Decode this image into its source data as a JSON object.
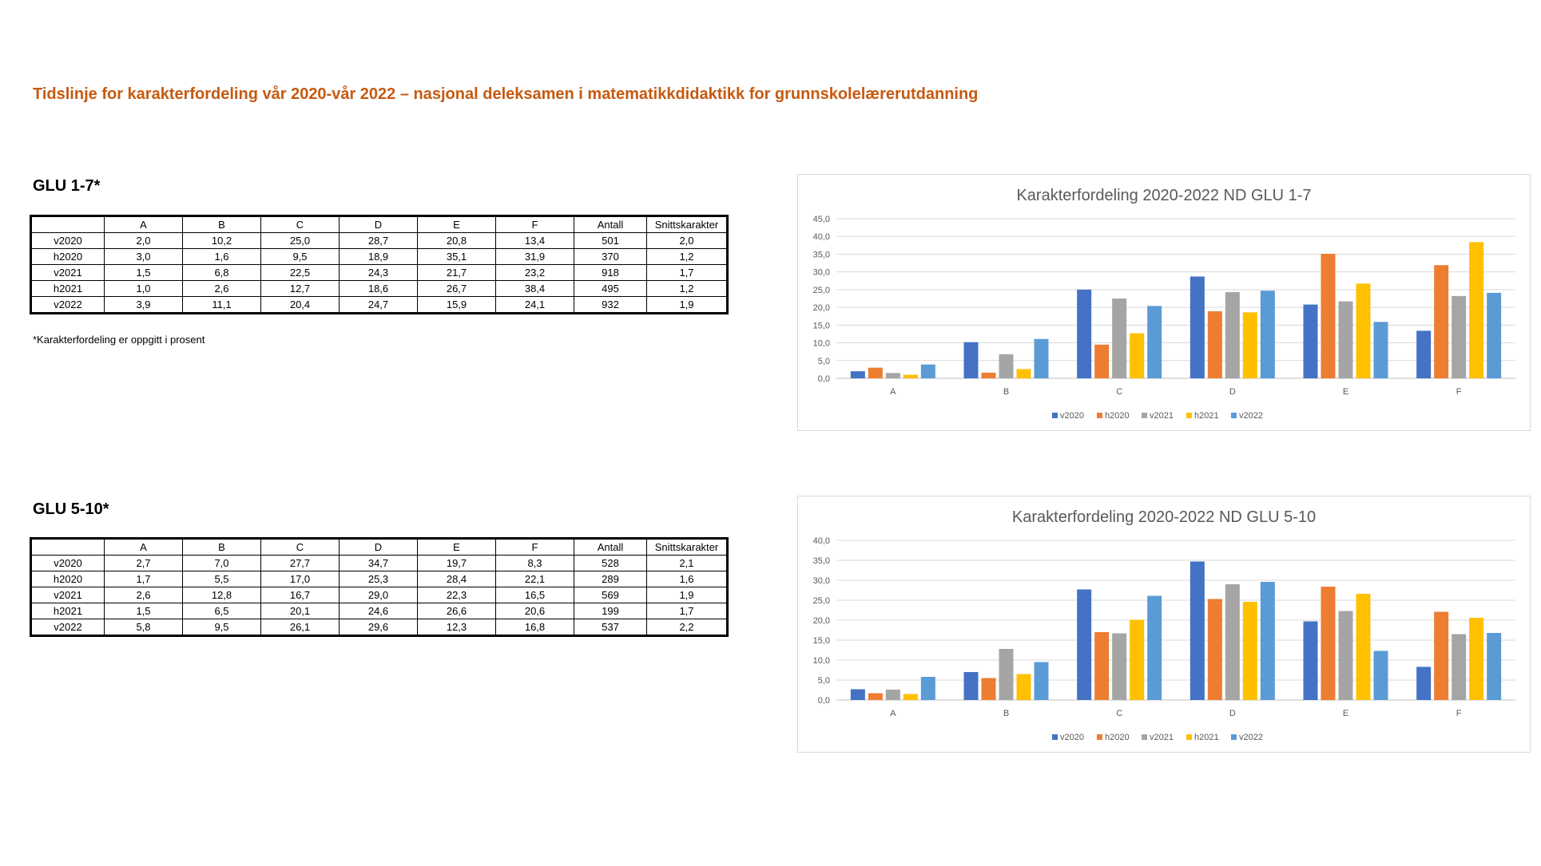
{
  "page": {
    "title": "Tidslinje for karakterfordeling vår 2020-vår 2022 – nasjonal deleksamen i matematikkdidaktikk for grunnskolelærerutdanning",
    "footnote": "*Karakterfordeling er oppgitt i prosent"
  },
  "sections": [
    {
      "heading": "GLU 1-7*",
      "table": {
        "headers": [
          "",
          "A",
          "B",
          "C",
          "D",
          "E",
          "F",
          "Antall",
          "Snittskarakter"
        ],
        "rows": [
          [
            "v2020",
            "2,0",
            "10,2",
            "25,0",
            "28,7",
            "20,8",
            "13,4",
            "501",
            "2,0"
          ],
          [
            "h2020",
            "3,0",
            "1,6",
            "9,5",
            "18,9",
            "35,1",
            "31,9",
            "370",
            "1,2"
          ],
          [
            "v2021",
            "1,5",
            "6,8",
            "22,5",
            "24,3",
            "21,7",
            "23,2",
            "918",
            "1,7"
          ],
          [
            "h2021",
            "1,0",
            "2,6",
            "12,7",
            "18,6",
            "26,7",
            "38,4",
            "495",
            "1,2"
          ],
          [
            "v2022",
            "3,9",
            "11,1",
            "20,4",
            "24,7",
            "15,9",
            "24,1",
            "932",
            "1,9"
          ]
        ]
      }
    },
    {
      "heading": "GLU 5-10*",
      "table": {
        "headers": [
          "",
          "A",
          "B",
          "C",
          "D",
          "E",
          "F",
          "Antall",
          "Snittskarakter"
        ],
        "rows": [
          [
            "v2020",
            "2,7",
            "7,0",
            "27,7",
            "34,7",
            "19,7",
            "8,3",
            "528",
            "2,1"
          ],
          [
            "h2020",
            "1,7",
            "5,5",
            "17,0",
            "25,3",
            "28,4",
            "22,1",
            "289",
            "1,6"
          ],
          [
            "v2021",
            "2,6",
            "12,8",
            "16,7",
            "29,0",
            "22,3",
            "16,5",
            "569",
            "1,9"
          ],
          [
            "h2021",
            "1,5",
            "6,5",
            "20,1",
            "24,6",
            "26,6",
            "20,6",
            "199",
            "1,7"
          ],
          [
            "v2022",
            "5,8",
            "9,5",
            "26,1",
            "29,6",
            "12,3",
            "16,8",
            "537",
            "2,2"
          ]
        ]
      }
    }
  ],
  "chart_data": [
    {
      "type": "bar",
      "title": "Karakterfordeling 2020-2022 ND GLU 1-7",
      "categories": [
        "A",
        "B",
        "C",
        "D",
        "E",
        "F"
      ],
      "ylim": [
        0,
        45
      ],
      "ytick_step": 5,
      "ytick_labels": [
        "0,0",
        "5,0",
        "10,0",
        "15,0",
        "20,0",
        "25,0",
        "30,0",
        "35,0",
        "40,0",
        "45,0"
      ],
      "grid": true,
      "legend": "bottom",
      "series": [
        {
          "name": "v2020",
          "color": "#4472c4",
          "values": [
            2.0,
            10.2,
            25.0,
            28.7,
            20.8,
            13.4
          ]
        },
        {
          "name": "h2020",
          "color": "#ed7d31",
          "values": [
            3.0,
            1.6,
            9.5,
            18.9,
            35.1,
            31.9
          ]
        },
        {
          "name": "v2021",
          "color": "#a5a5a5",
          "values": [
            1.5,
            6.8,
            22.5,
            24.3,
            21.7,
            23.2
          ]
        },
        {
          "name": "h2021",
          "color": "#ffc000",
          "values": [
            1.0,
            2.6,
            12.7,
            18.6,
            26.7,
            38.4
          ]
        },
        {
          "name": "v2022",
          "color": "#5b9bd5",
          "values": [
            3.9,
            11.1,
            20.4,
            24.7,
            15.9,
            24.1
          ]
        }
      ]
    },
    {
      "type": "bar",
      "title": "Karakterfordeling 2020-2022 ND GLU 5-10",
      "categories": [
        "A",
        "B",
        "C",
        "D",
        "E",
        "F"
      ],
      "ylim": [
        0,
        40
      ],
      "ytick_step": 5,
      "ytick_labels": [
        "0,0",
        "5,0",
        "10,0",
        "15,0",
        "20,0",
        "25,0",
        "30,0",
        "35,0",
        "40,0"
      ],
      "grid": true,
      "legend": "bottom",
      "series": [
        {
          "name": "v2020",
          "color": "#4472c4",
          "values": [
            2.7,
            7.0,
            27.7,
            34.7,
            19.7,
            8.3
          ]
        },
        {
          "name": "h2020",
          "color": "#ed7d31",
          "values": [
            1.7,
            5.5,
            17.0,
            25.3,
            28.4,
            22.1
          ]
        },
        {
          "name": "v2021",
          "color": "#a5a5a5",
          "values": [
            2.6,
            12.8,
            16.7,
            29.0,
            22.3,
            16.5
          ]
        },
        {
          "name": "h2021",
          "color": "#ffc000",
          "values": [
            1.5,
            6.5,
            20.1,
            24.6,
            26.6,
            20.6
          ]
        },
        {
          "name": "v2022",
          "color": "#5b9bd5",
          "values": [
            5.8,
            9.5,
            26.1,
            29.6,
            12.3,
            16.8
          ]
        }
      ]
    }
  ]
}
